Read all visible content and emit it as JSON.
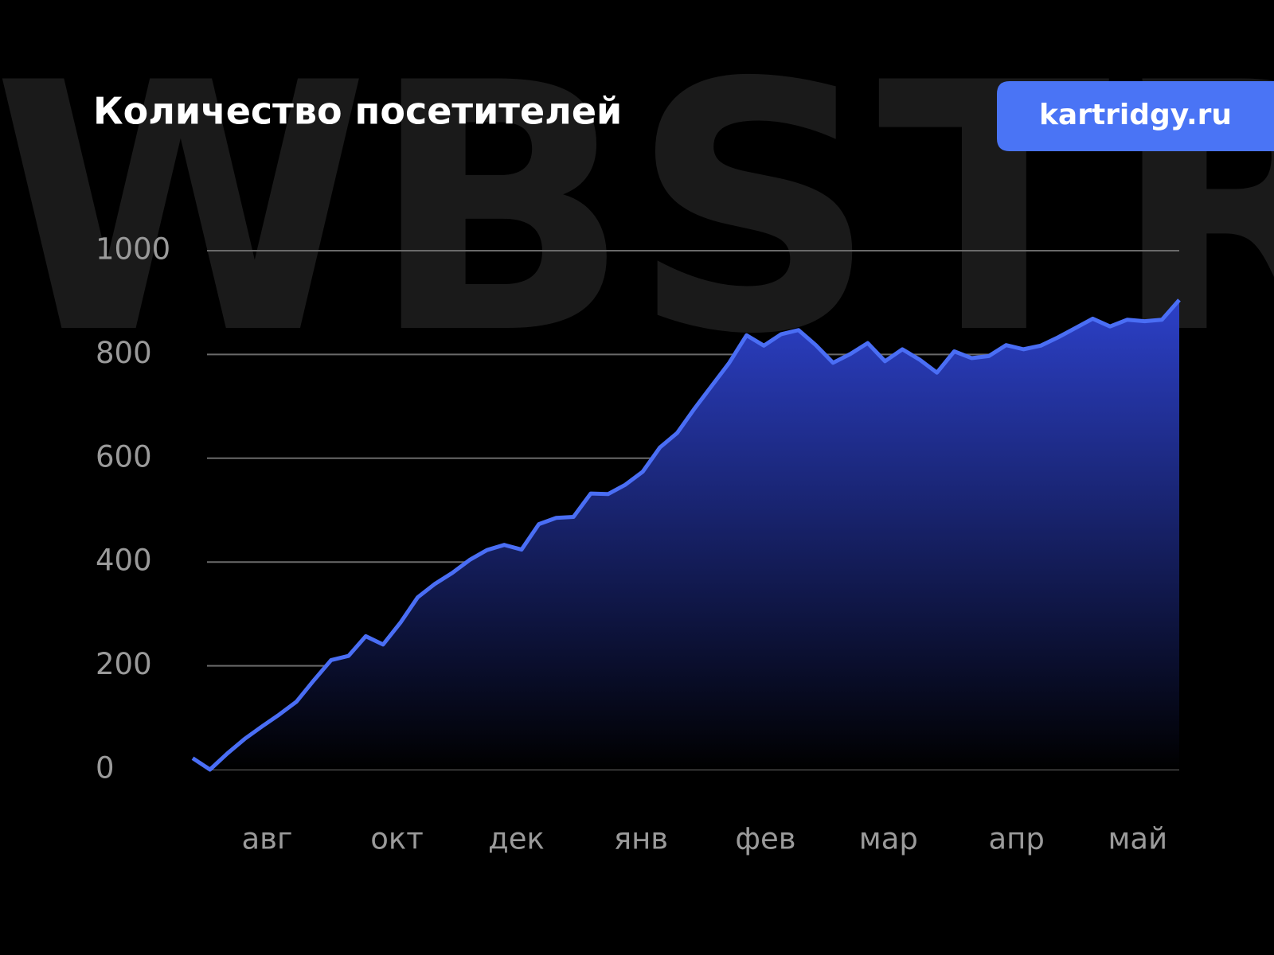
{
  "watermark": "WBSTR",
  "badge": "kartridgy.ru",
  "chart_data": {
    "type": "area",
    "title": "Количество посетителей",
    "x": [
      0,
      1,
      2,
      3,
      4,
      5,
      6,
      7,
      8,
      9,
      10,
      11,
      12,
      13,
      14,
      15,
      16,
      17,
      18,
      19,
      20,
      21,
      22,
      23,
      24,
      25,
      26,
      27,
      28,
      29,
      30,
      31,
      32,
      33,
      34,
      35,
      36,
      37,
      38,
      39,
      40,
      41,
      42,
      43,
      44,
      45,
      46,
      47,
      48,
      49,
      50,
      51,
      52,
      53,
      54,
      55,
      56,
      57
    ],
    "series": [
      {
        "color": "#4a6ef5",
        "values": [
          22,
          0,
          31,
          59,
          83,
          106,
          131,
          172,
          211,
          219,
          257,
          241,
          283,
          332,
          358,
          379,
          404,
          423,
          433,
          424,
          473,
          485,
          487,
          532,
          531,
          549,
          574,
          621,
          649,
          696,
          740,
          784,
          837,
          817,
          839,
          847,
          818,
          784,
          801,
          822,
          787,
          810,
          790,
          765,
          806,
          793,
          797,
          818,
          810,
          817,
          833,
          851,
          869,
          854,
          867,
          864,
          867,
          905
        ]
      }
    ],
    "xlim": [
      0,
      57
    ],
    "xticks": [
      {
        "value": 4.3,
        "label": "авг"
      },
      {
        "value": 11.8,
        "label": "окт"
      },
      {
        "value": 18.7,
        "label": "дек"
      },
      {
        "value": 25.9,
        "label": "янв"
      },
      {
        "value": 33.1,
        "label": "фев"
      },
      {
        "value": 40.2,
        "label": "мар"
      },
      {
        "value": 47.6,
        "label": "апр"
      },
      {
        "value": 54.6,
        "label": "май"
      }
    ],
    "ylim": [
      0,
      1000
    ],
    "yticks": [
      0,
      200,
      400,
      600,
      800,
      1000
    ],
    "grid": true
  }
}
